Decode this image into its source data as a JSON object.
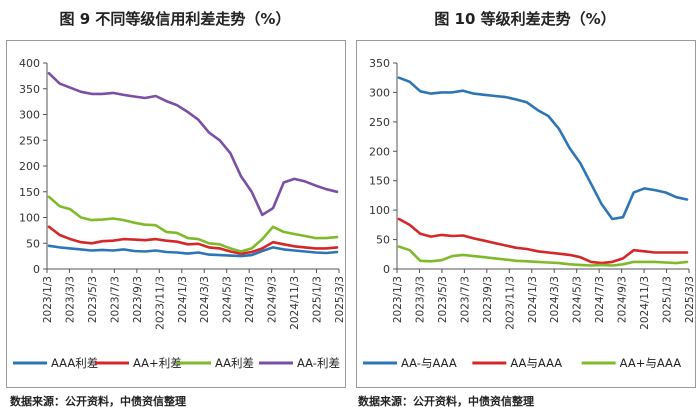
{
  "chart_data": [
    {
      "type": "line",
      "title": "图 9  不同等级信用利差走势（%）",
      "source": "数据来源：公开资料，中债资信整理",
      "x_ticks": [
        "2023/1/3",
        "2023/3/3",
        "2023/5/3",
        "2023/7/3",
        "2023/9/3",
        "2023/11/3",
        "2024/1/3",
        "2024/3/3",
        "2024/5/3",
        "2024/7/3",
        "2024/9/3",
        "2024/11/3",
        "2025/1/3",
        "2025/3/3"
      ],
      "y_ticks": [
        "0",
        "50",
        "100",
        "150",
        "200",
        "250",
        "300",
        "350",
        "400"
      ],
      "ylim": [
        0,
        400
      ],
      "grid": false,
      "legend_position": "bottom",
      "series": [
        {
          "name": "AAA利差",
          "color": "#2e75b6",
          "values": [
            45,
            42,
            40,
            38,
            36,
            37,
            36,
            38,
            35,
            34,
            36,
            33,
            32,
            30,
            32,
            28,
            27,
            26,
            25,
            27,
            35,
            42,
            38,
            36,
            34,
            32,
            31,
            33
          ]
        },
        {
          "name": "AA+利差",
          "color": "#d62728",
          "values": [
            82,
            66,
            58,
            52,
            50,
            54,
            55,
            58,
            57,
            56,
            58,
            55,
            53,
            48,
            49,
            42,
            40,
            34,
            30,
            33,
            40,
            52,
            48,
            44,
            42,
            40,
            40,
            42
          ]
        },
        {
          "name": "AA利差",
          "color": "#7fba2a",
          "values": [
            140,
            122,
            116,
            100,
            95,
            96,
            98,
            95,
            90,
            86,
            85,
            72,
            70,
            60,
            58,
            50,
            48,
            40,
            34,
            40,
            58,
            82,
            72,
            68,
            64,
            60,
            60,
            62
          ]
        },
        {
          "name": "AA-利差",
          "color": "#7b4fa3",
          "values": [
            380,
            360,
            352,
            344,
            340,
            340,
            342,
            338,
            335,
            332,
            336,
            326,
            318,
            305,
            290,
            265,
            250,
            225,
            180,
            150,
            105,
            118,
            168,
            175,
            170,
            162,
            155,
            150
          ]
        }
      ]
    },
    {
      "type": "line",
      "title": "图 10  等级利差走势（%）",
      "source": "数据来源：公开资料，中债资信整理",
      "x_ticks": [
        "2023/1/3",
        "2023/3/3",
        "2023/5/3",
        "2023/7/3",
        "2023/9/3",
        "2023/11/3",
        "2024/1/3",
        "2024/3/3",
        "2024/5/3",
        "2024/7/3",
        "2024/9/3",
        "2024/11/3",
        "2025/1/3",
        "2025/3/3"
      ],
      "y_ticks": [
        "0",
        "50",
        "100",
        "150",
        "200",
        "250",
        "300",
        "350"
      ],
      "ylim": [
        0,
        350
      ],
      "grid": false,
      "legend_position": "bottom",
      "series": [
        {
          "name": "AA-与AAA",
          "color": "#2e75b6",
          "values": [
            325,
            318,
            302,
            298,
            300,
            300,
            303,
            298,
            296,
            294,
            292,
            288,
            283,
            270,
            260,
            238,
            205,
            180,
            145,
            110,
            85,
            88,
            130,
            137,
            134,
            130,
            122,
            118
          ]
        },
        {
          "name": "AA与AAA",
          "color": "#d62728",
          "values": [
            85,
            75,
            60,
            55,
            58,
            56,
            57,
            52,
            48,
            44,
            40,
            36,
            34,
            30,
            28,
            26,
            24,
            20,
            12,
            10,
            12,
            18,
            32,
            30,
            28,
            28,
            28,
            28
          ]
        },
        {
          "name": "AA+与AAA",
          "color": "#7fba2a",
          "values": [
            38,
            32,
            14,
            13,
            15,
            22,
            24,
            22,
            20,
            18,
            16,
            14,
            13,
            12,
            11,
            10,
            8,
            7,
            6,
            7,
            6,
            8,
            12,
            12,
            12,
            11,
            10,
            12
          ]
        }
      ]
    }
  ]
}
